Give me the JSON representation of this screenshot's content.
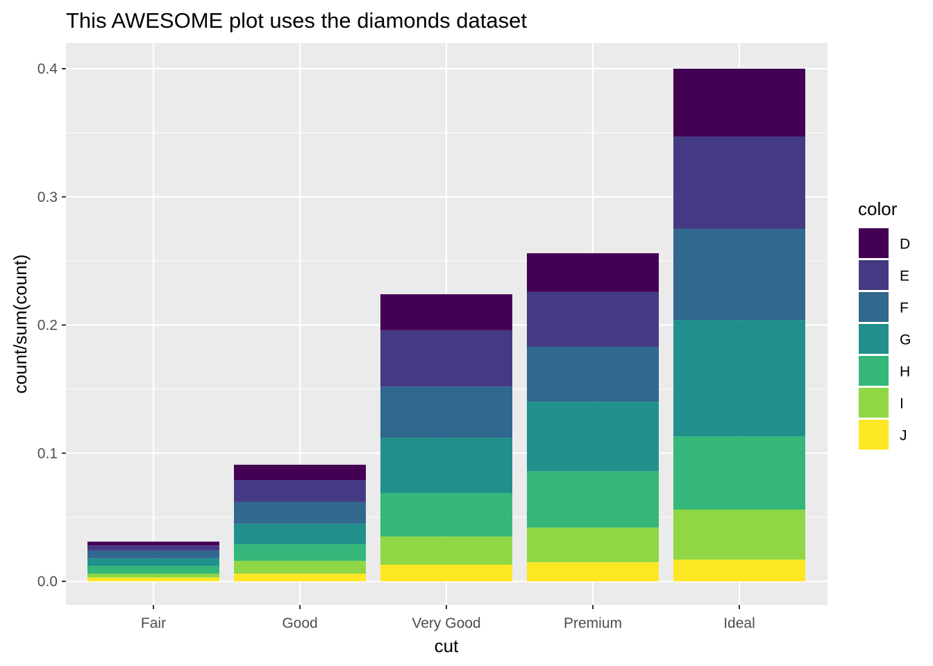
{
  "chart_data": {
    "type": "bar",
    "stacked": true,
    "title": "This AWESOME plot uses the diamonds dataset",
    "xlabel": "cut",
    "ylabel": "count/sum(count)",
    "categories": [
      "Fair",
      "Good",
      "Very Good",
      "Premium",
      "Ideal"
    ],
    "ylim": [
      -0.02,
      0.42
    ],
    "yticks": [
      0.0,
      0.1,
      0.2,
      0.3,
      0.4
    ],
    "ytick_labels": [
      "0.0",
      "0.1",
      "0.2",
      "0.3",
      "0.4"
    ],
    "grid": true,
    "legend": {
      "title": "color",
      "position": "right"
    },
    "series": [
      {
        "name": "J",
        "color": "#FDE725",
        "values": [
          0.003,
          0.006,
          0.013,
          0.015,
          0.017
        ]
      },
      {
        "name": "I",
        "color": "#8FD744",
        "values": [
          0.003,
          0.01,
          0.022,
          0.027,
          0.039
        ]
      },
      {
        "name": "H",
        "color": "#35B779",
        "values": [
          0.006,
          0.013,
          0.034,
          0.044,
          0.057
        ]
      },
      {
        "name": "G",
        "color": "#21908C",
        "values": [
          0.006,
          0.016,
          0.043,
          0.054,
          0.091
        ]
      },
      {
        "name": "F",
        "color": "#31688E",
        "values": [
          0.006,
          0.017,
          0.04,
          0.043,
          0.071
        ]
      },
      {
        "name": "E",
        "color": "#443A83",
        "values": [
          0.004,
          0.017,
          0.044,
          0.043,
          0.072
        ]
      },
      {
        "name": "D",
        "color": "#440154",
        "values": [
          0.003,
          0.012,
          0.028,
          0.03,
          0.053
        ]
      }
    ],
    "legend_order": [
      "D",
      "E",
      "F",
      "G",
      "H",
      "I",
      "J"
    ]
  }
}
